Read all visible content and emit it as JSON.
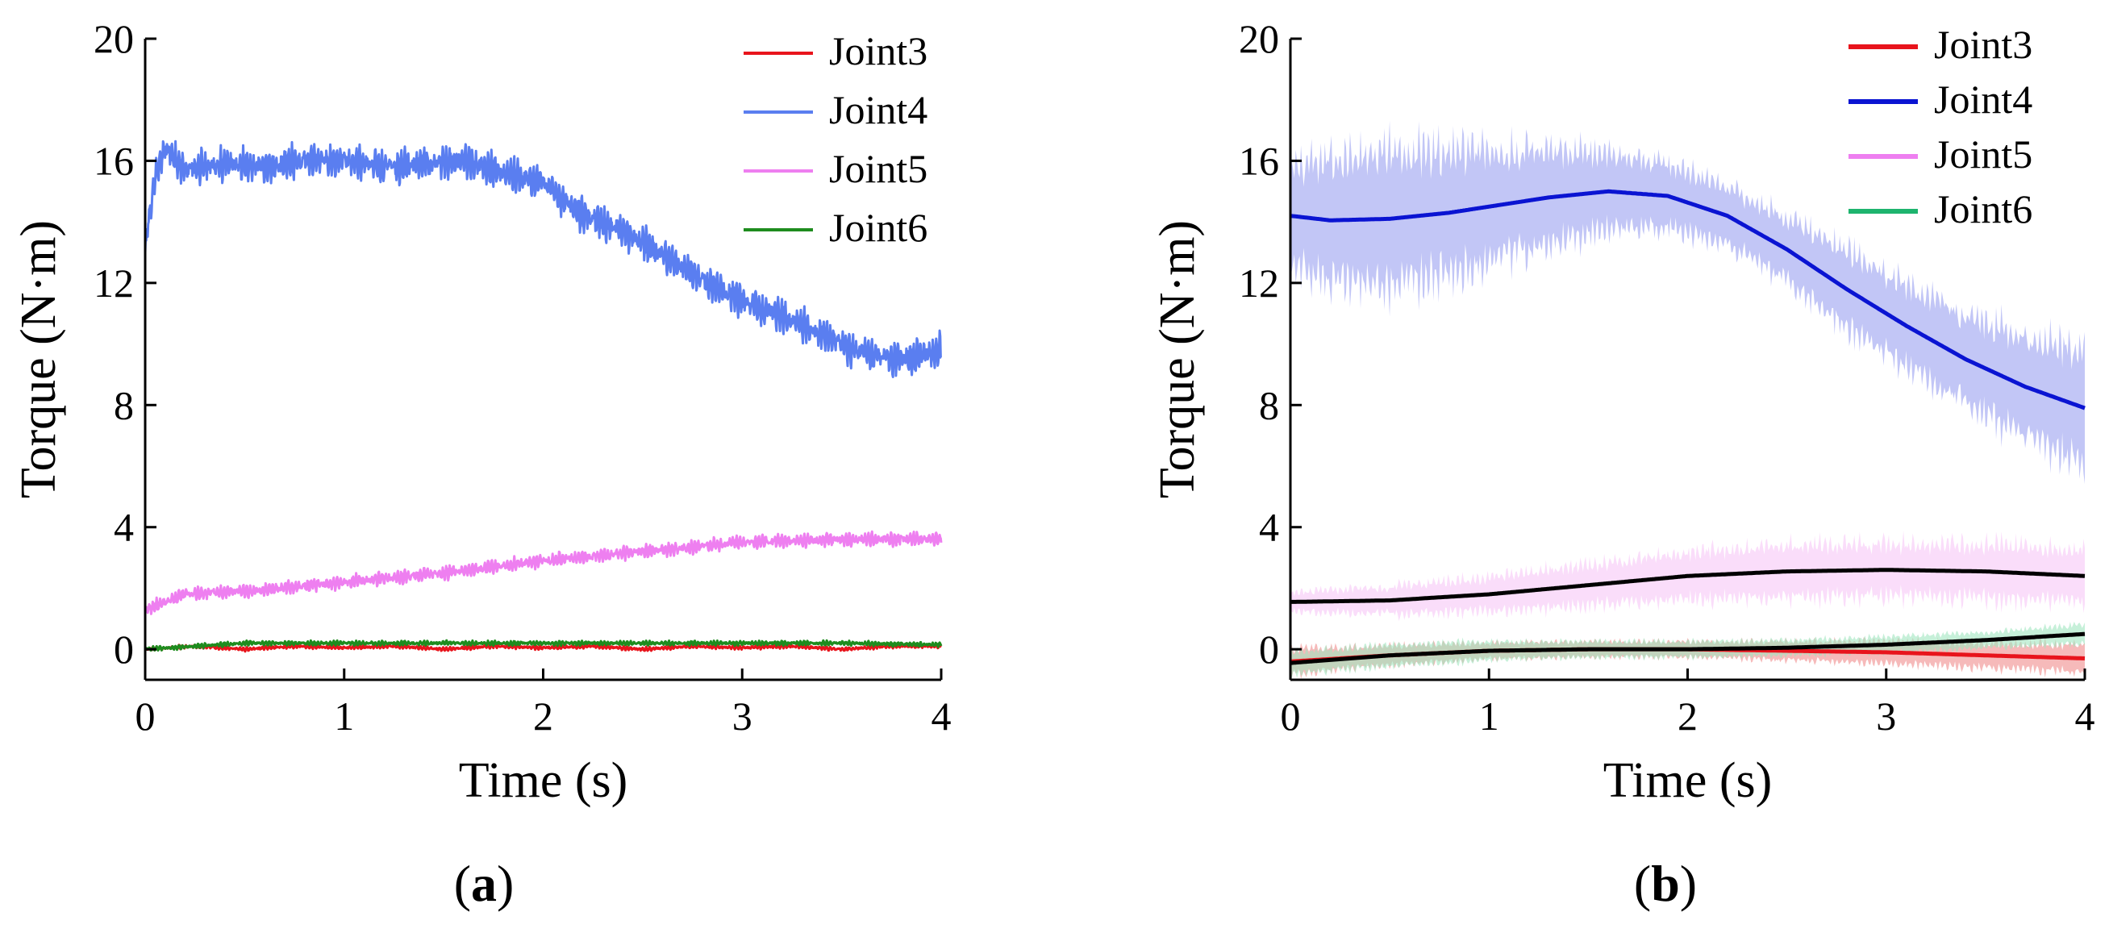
{
  "figure": {
    "panels": [
      {
        "label_open": "(",
        "label_letter": "a",
        "label_close": ")"
      },
      {
        "label_open": "(",
        "label_letter": "b",
        "label_close": ")"
      }
    ]
  },
  "chart_data": [
    {
      "type": "line",
      "panel": "(a)",
      "xlabel": "Time (s)",
      "ylabel": "Torque (N·m)",
      "xlim": [
        0,
        4
      ],
      "ylim": [
        -1,
        20
      ],
      "xticks": [
        0,
        1,
        2,
        3,
        4
      ],
      "yticks": [
        0,
        4,
        8,
        12,
        16,
        20
      ],
      "grid": false,
      "legend_position": "top-right",
      "series": [
        {
          "name": "Joint3",
          "color": "#e8141c",
          "x": [
            0,
            0.25,
            0.5,
            0.75,
            1.0,
            1.25,
            1.5,
            1.75,
            2.0,
            2.25,
            2.5,
            2.75,
            3.0,
            3.25,
            3.5,
            3.75,
            4.0
          ],
          "y": [
            0.0,
            0.1,
            0.0,
            0.1,
            0.05,
            0.1,
            0.0,
            0.1,
            0.05,
            0.1,
            0.0,
            0.1,
            0.05,
            0.1,
            0.0,
            0.1,
            0.1
          ],
          "noise": 0.1
        },
        {
          "name": "Joint4",
          "color": "#5a7ef0",
          "x": [
            0,
            0.05,
            0.1,
            0.2,
            0.4,
            0.6,
            0.8,
            1.0,
            1.2,
            1.4,
            1.6,
            1.8,
            2.0,
            2.2,
            2.4,
            2.6,
            2.8,
            3.0,
            3.2,
            3.4,
            3.6,
            3.8,
            4.0
          ],
          "y": [
            13.2,
            15.5,
            16.4,
            15.7,
            15.9,
            15.8,
            16.0,
            16.0,
            15.8,
            15.9,
            16.0,
            15.6,
            15.3,
            14.2,
            13.7,
            12.9,
            12.1,
            11.4,
            10.9,
            10.3,
            9.7,
            9.5,
            9.8
          ],
          "noise": 0.9
        },
        {
          "name": "Joint5",
          "color": "#ee7ff0",
          "x": [
            0,
            0.2,
            0.5,
            1.0,
            1.5,
            2.0,
            2.5,
            3.0,
            3.5,
            4.0
          ],
          "y": [
            1.3,
            1.8,
            1.9,
            2.2,
            2.5,
            2.9,
            3.2,
            3.5,
            3.6,
            3.6
          ],
          "noise": 0.35
        },
        {
          "name": "Joint6",
          "color": "#1e8c1e",
          "x": [
            0,
            0.5,
            1.0,
            1.5,
            2.0,
            2.5,
            3.0,
            3.5,
            4.0
          ],
          "y": [
            0.0,
            0.2,
            0.2,
            0.2,
            0.2,
            0.2,
            0.2,
            0.2,
            0.15
          ],
          "noise": 0.12
        }
      ]
    },
    {
      "type": "line",
      "panel": "(b)",
      "xlabel": "Time (s)",
      "ylabel": "Torque (N·m)",
      "xlim": [
        0,
        4
      ],
      "ylim": [
        -1,
        20
      ],
      "xticks": [
        0,
        1,
        2,
        3,
        4
      ],
      "yticks": [
        0,
        4,
        8,
        12,
        16,
        20
      ],
      "grid": false,
      "legend_position": "top-right",
      "series": [
        {
          "name": "Joint3",
          "color": "#e8141c",
          "band_color": "#f08c8c",
          "x": [
            0,
            0.5,
            1.0,
            1.5,
            2.0,
            2.5,
            3.0,
            3.5,
            4.0
          ],
          "y": [
            -0.4,
            -0.2,
            -0.05,
            0.0,
            0.0,
            -0.05,
            -0.1,
            -0.2,
            -0.3
          ],
          "band": [
            0.4,
            0.3,
            0.25,
            0.25,
            0.25,
            0.3,
            0.35,
            0.4,
            0.45
          ]
        },
        {
          "name": "Joint4",
          "color": "#0a14d2",
          "band_color": "#9aa0f0",
          "x": [
            0,
            0.2,
            0.5,
            0.8,
            1.0,
            1.3,
            1.6,
            1.9,
            2.2,
            2.5,
            2.8,
            3.1,
            3.4,
            3.7,
            4.0
          ],
          "y": [
            14.2,
            14.05,
            14.1,
            14.3,
            14.5,
            14.8,
            15.0,
            14.85,
            14.2,
            13.1,
            11.8,
            10.6,
            9.5,
            8.6,
            7.9
          ],
          "band": [
            1.5,
            2.0,
            2.1,
            1.9,
            1.8,
            1.5,
            1.2,
            1.0,
            0.9,
            1.0,
            1.2,
            1.3,
            1.4,
            1.6,
            1.8
          ]
        },
        {
          "name": "Joint5",
          "color": "#ee7ff0",
          "mean_color": "#000000",
          "band_color": "#f7c6f7",
          "x": [
            0,
            0.5,
            1.0,
            1.5,
            2.0,
            2.5,
            3.0,
            3.5,
            4.0
          ],
          "y": [
            1.55,
            1.6,
            1.8,
            2.1,
            2.4,
            2.55,
            2.6,
            2.55,
            2.4
          ],
          "band": [
            0.3,
            0.45,
            0.55,
            0.65,
            0.75,
            0.8,
            0.85,
            0.85,
            0.9
          ]
        },
        {
          "name": "Joint6",
          "color": "#1eb46e",
          "mean_color": "#000000",
          "band_color": "#a0e6c0",
          "x": [
            0,
            0.5,
            1.0,
            1.5,
            2.0,
            2.5,
            3.0,
            3.5,
            4.0
          ],
          "y": [
            -0.45,
            -0.2,
            -0.05,
            0.0,
            0.0,
            0.05,
            0.15,
            0.3,
            0.5
          ],
          "band": [
            0.35,
            0.35,
            0.3,
            0.25,
            0.25,
            0.25,
            0.25,
            0.25,
            0.3
          ]
        }
      ]
    }
  ]
}
